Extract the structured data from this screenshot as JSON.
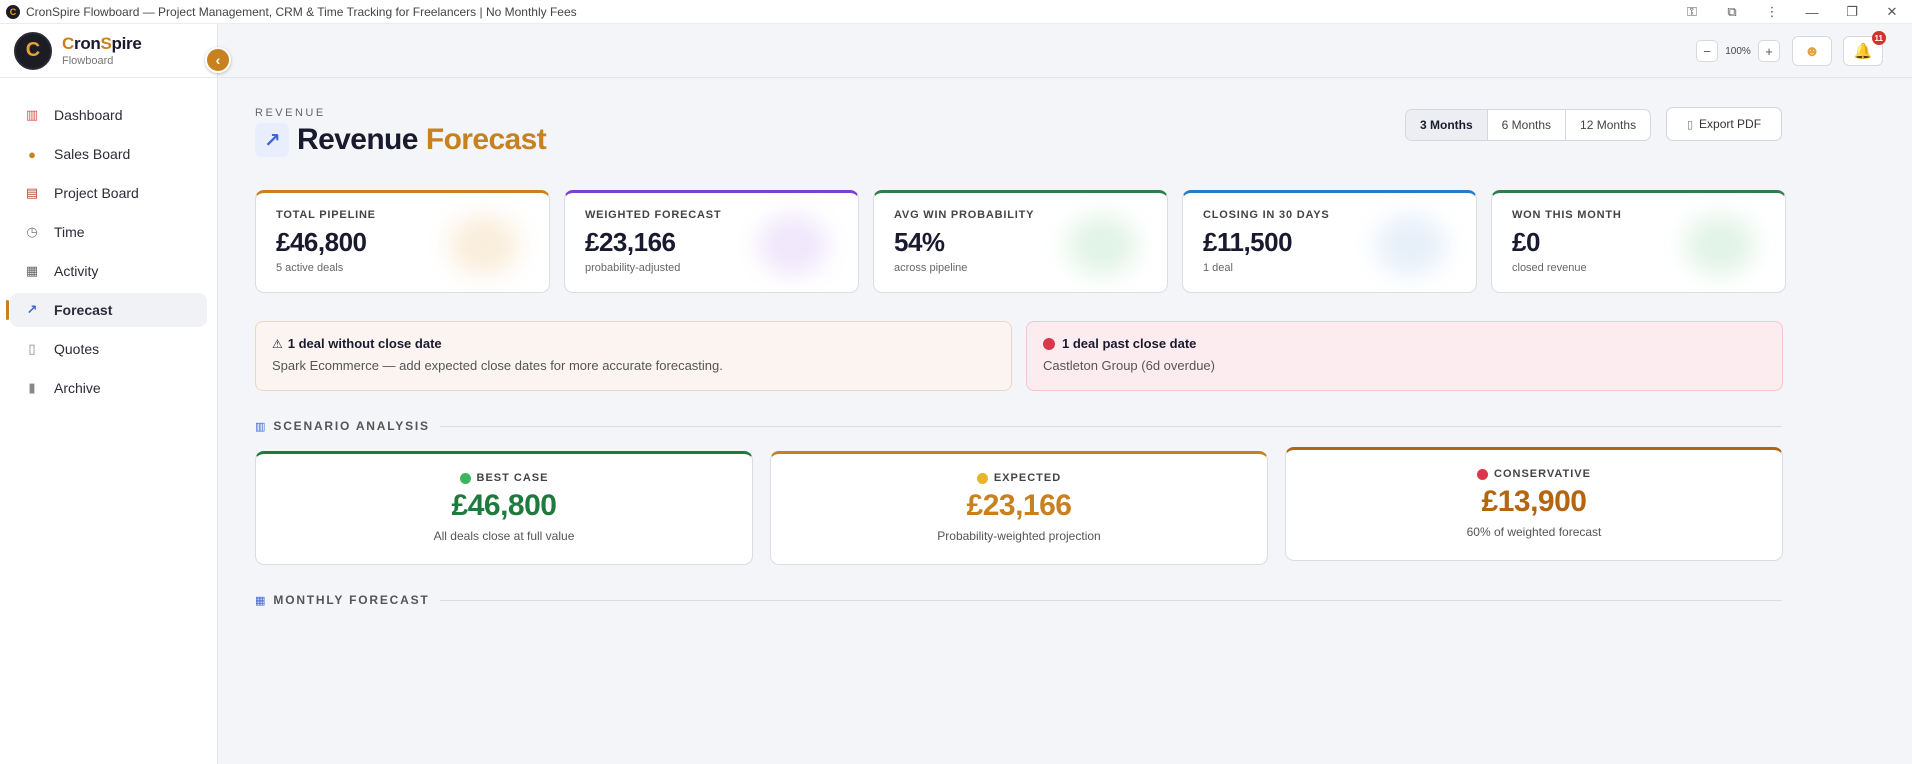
{
  "window": {
    "title": "CronSpire Flowboard — Project Management, CRM & Time Tracking for Freelancers | No Monthly Fees"
  },
  "brand": {
    "name_prefix": "C",
    "name_o": "r",
    "name_mid": "on",
    "name_s": "S",
    "name_suffix": "pire",
    "sub": "Flowboard"
  },
  "sidebar": {
    "items": [
      {
        "label": "Dashboard",
        "icon": "chart-icon"
      },
      {
        "label": "Sales Board",
        "icon": "money-bag-icon"
      },
      {
        "label": "Project Board",
        "icon": "clipboard-icon"
      },
      {
        "label": "Time",
        "icon": "stopwatch-icon"
      },
      {
        "label": "Activity",
        "icon": "calendar-icon"
      },
      {
        "label": "Forecast",
        "icon": "trend-icon",
        "active": true
      },
      {
        "label": "Quotes",
        "icon": "document-icon"
      },
      {
        "label": "Archive",
        "icon": "archive-icon"
      }
    ]
  },
  "topbar": {
    "zoom_minus": "−",
    "zoom_value": "100%",
    "zoom_plus": "+",
    "notification_count": "11"
  },
  "page": {
    "eyebrow": "REVENUE",
    "title_main": "Revenue",
    "title_accent": "Forecast",
    "ranges": [
      "3 Months",
      "6 Months",
      "12 Months"
    ],
    "active_range": "3 Months",
    "export_label": "Export PDF"
  },
  "kpis": [
    {
      "label": "TOTAL PIPELINE",
      "value": "£46,800",
      "sub": "5 active deals",
      "color": "#c8811f"
    },
    {
      "label": "WEIGHTED FORECAST",
      "value": "£23,166",
      "sub": "probability-adjusted",
      "color": "#7b3fd1"
    },
    {
      "label": "AVG WIN PROBABILITY",
      "value": "54%",
      "sub": "across pipeline",
      "color": "#2e7d4a"
    },
    {
      "label": "CLOSING IN 30 DAYS",
      "value": "£11,500",
      "sub": "1 deal",
      "color": "#2a7bc4"
    },
    {
      "label": "WON THIS MONTH",
      "value": "£0",
      "sub": "closed revenue",
      "color": "#2e7d4a"
    }
  ],
  "alerts": {
    "warn": {
      "icon": "⚠",
      "title": "1 deal without close date",
      "body": "Spark Ecommerce — add expected close dates for more accurate forecasting."
    },
    "danger": {
      "title": "1 deal past close date",
      "body": "Castleton Group (6d overdue)"
    }
  },
  "sections": {
    "scenario": "SCENARIO ANALYSIS",
    "monthly": "MONTHLY FORECAST"
  },
  "scenarios": [
    {
      "label": "BEST CASE",
      "value": "£46,800",
      "sub": "All deals close at full value",
      "color": "#1f7a3e",
      "dot": "#3cb55e"
    },
    {
      "label": "EXPECTED",
      "value": "£23,166",
      "sub": "Probability-weighted projection",
      "color": "#c8811f",
      "dot": "#e7b42c"
    },
    {
      "label": "CONSERVATIVE",
      "value": "£13,900",
      "sub": "60% of weighted forecast",
      "color": "#b5650e",
      "dot": "#d8384a"
    }
  ]
}
